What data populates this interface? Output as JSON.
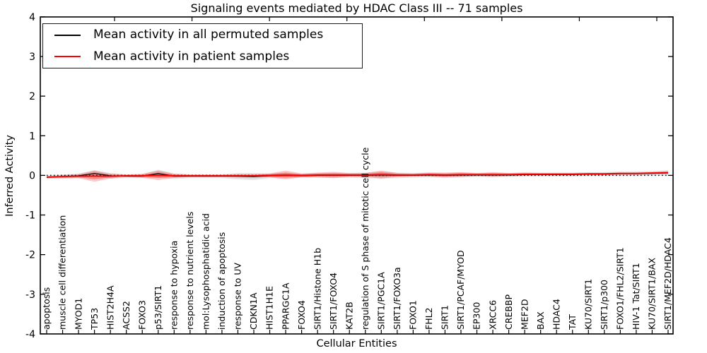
{
  "title": "Signaling events mediated by HDAC Class III -- 71 samples",
  "legend": {
    "position": "upper left",
    "items": [
      {
        "label": "Mean activity in all permuted samples",
        "color": "#000000"
      },
      {
        "label": "Mean activity in patient samples",
        "color": "#ff0000"
      }
    ]
  },
  "axes": {
    "xlabel": "Cellular Entities",
    "ylabel": "Inferred Activity",
    "yticks": [
      "4",
      "3",
      "2",
      "1",
      "0",
      "-1",
      "-2",
      "-3",
      "-4"
    ],
    "ytick_values": [
      4,
      3,
      2,
      1,
      0,
      -1,
      -2,
      -3,
      -4
    ]
  },
  "chart_data": {
    "type": "line",
    "title": "Signaling events mediated by HDAC Class III -- 71 samples",
    "xlabel": "Cellular Entities",
    "ylabel": "Inferred Activity",
    "ylim": [
      -4,
      4
    ],
    "grid": false,
    "zero_line": {
      "value": 0,
      "style": "dotted",
      "color": "#111111"
    },
    "categories": [
      "apoptosis",
      "muscle cell differentiation",
      "MYOD1",
      "TP53",
      "HIST2H4A",
      "ACSS2",
      "FOXO3",
      "p53/SIRT1",
      "response to hypoxia",
      "response to nutrient levels",
      "mol:Lysophosphatidic acid",
      "induction of apoptosis",
      "response to UV",
      "CDKN1A",
      "HIST1H1E",
      "PPARGC1A",
      "FOXO4",
      "SIRT1/Histone H1b",
      "SIRT1/FOXO4",
      "KAT2B",
      "regulation of S phase of mitotic cell cycle",
      "SIRT1/PGC1A",
      "SIRT1/FOXO3a",
      "FOXO1",
      "FHL2",
      "SIRT1",
      "SIRT1/PCAF/MYOD",
      "EP300",
      "XRCC6",
      "CREBBP",
      "MEF2D",
      "BAX",
      "HDAC4",
      "TAT",
      "KU70/SIRT1",
      "SIRT1/p300",
      "FOXO1/FHL2/SIRT1",
      "HIV-1 Tat/SIRT1",
      "KU70/SIRT1/BAX",
      "SIRT1/MEF2D/HDAC4"
    ],
    "series": [
      {
        "name": "Mean activity in all permuted samples",
        "color": "#000000",
        "band_color": "#808080",
        "values": [
          -0.04,
          -0.03,
          -0.01,
          0.05,
          -0.01,
          -0.02,
          -0.02,
          0.045,
          -0.02,
          -0.02,
          -0.02,
          -0.02,
          -0.02,
          -0.03,
          -0.01,
          0.0,
          -0.01,
          0.0,
          0.0,
          0.0,
          0.0,
          0.01,
          0.0,
          0.0,
          0.01,
          0.0,
          0.01,
          0.01,
          0.01,
          0.01,
          0.02,
          0.02,
          0.02,
          0.02,
          0.03,
          0.03,
          0.04,
          0.04,
          0.05,
          0.06
        ],
        "band_halfwidth": [
          0.05,
          0.05,
          0.06,
          0.08,
          0.07,
          0.05,
          0.05,
          0.1,
          0.07,
          0.05,
          0.05,
          0.05,
          0.08,
          0.09,
          0.06,
          0.07,
          0.05,
          0.06,
          0.06,
          0.06,
          0.07,
          0.09,
          0.07,
          0.06,
          0.06,
          0.06,
          0.06,
          0.05,
          0.05,
          0.05,
          0.05,
          0.05,
          0.05,
          0.05,
          0.05,
          0.05,
          0.06,
          0.06,
          0.06,
          0.07
        ]
      },
      {
        "name": "Mean activity in patient samples",
        "color": "#ff0000",
        "band_color": "#ff0000",
        "values": [
          -0.05,
          -0.03,
          -0.02,
          -0.02,
          -0.02,
          -0.01,
          -0.01,
          0.0,
          -0.01,
          -0.01,
          -0.01,
          -0.01,
          -0.01,
          -0.01,
          0.0,
          0.01,
          0.0,
          0.01,
          0.01,
          0.01,
          0.01,
          0.02,
          0.01,
          0.01,
          0.02,
          0.01,
          0.02,
          0.02,
          0.02,
          0.02,
          0.03,
          0.03,
          0.03,
          0.03,
          0.04,
          0.04,
          0.05,
          0.05,
          0.06,
          0.07
        ],
        "band_halfwidth": [
          0.02,
          0.04,
          0.05,
          0.14,
          0.06,
          0.03,
          0.05,
          0.12,
          0.05,
          0.03,
          0.03,
          0.03,
          0.04,
          0.04,
          0.05,
          0.11,
          0.05,
          0.06,
          0.08,
          0.05,
          0.05,
          0.1,
          0.05,
          0.04,
          0.05,
          0.06,
          0.06,
          0.04,
          0.06,
          0.04,
          0.04,
          0.03,
          0.03,
          0.03,
          0.02,
          0.02,
          0.02,
          0.02,
          0.02,
          0.03
        ]
      }
    ]
  }
}
